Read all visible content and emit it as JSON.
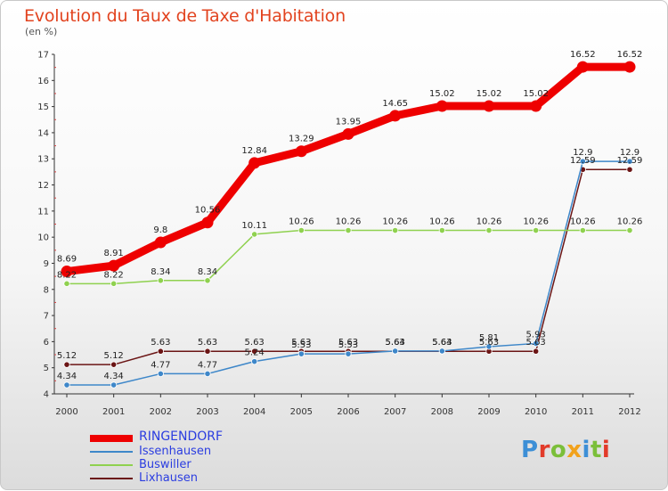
{
  "title": "Evolution du Taux de Taxe d'Habitation",
  "subtitle": "(en %)",
  "logo": {
    "text": "Proxiti",
    "letters": [
      "P",
      "r",
      "o",
      "x",
      "i",
      "t",
      "i"
    ],
    "colors": [
      "#3d8fd6",
      "#e23b2a",
      "#7bbf3a",
      "#f2a21c",
      "#3d8fd6",
      "#7bbf3a",
      "#e23b2a"
    ]
  },
  "chart_data": {
    "type": "line",
    "title": "Evolution du Taux de Taxe d'Habitation",
    "ylabel": "(en %)",
    "x": [
      "2000",
      "2001",
      "2002",
      "2003",
      "2004",
      "2005",
      "2006",
      "2007",
      "2008",
      "2009",
      "2010",
      "2011",
      "2012"
    ],
    "ylim": [
      4,
      17
    ],
    "yticks": [
      "4",
      "5",
      "6",
      "7",
      "8",
      "9",
      "10",
      "11",
      "12",
      "13",
      "14",
      "15",
      "16",
      "17"
    ],
    "grid": false,
    "legend": "bottom-left",
    "series": [
      {
        "name": "Lixhausen",
        "color": "#6b1515",
        "width": 1.5,
        "values": [
          5.12,
          5.12,
          5.63,
          5.63,
          5.63,
          5.63,
          5.63,
          5.63,
          5.63,
          5.63,
          5.63,
          12.59,
          12.59
        ],
        "labels": [
          "5.12",
          "5.12",
          "5.63",
          "5.63",
          "5.63",
          "5.63",
          "5.63",
          "5.63",
          "5.63",
          "5.63",
          "5.63",
          "12.59",
          "12.59"
        ]
      },
      {
        "name": "Issenhausen",
        "color": "#3e87c9",
        "width": 1.5,
        "values": [
          4.34,
          4.34,
          4.77,
          4.77,
          5.24,
          5.53,
          5.53,
          5.64,
          5.64,
          5.81,
          5.93,
          12.9,
          12.9
        ],
        "labels": [
          "4.34",
          "4.34",
          "4.77",
          "4.77",
          "5.24",
          "5.53",
          "5.53",
          "5.64",
          "5.64",
          "5.81",
          "5.93",
          "12.9",
          "12.9"
        ]
      },
      {
        "name": "Buswiller",
        "color": "#8fd14f",
        "width": 1.5,
        "values": [
          8.22,
          8.22,
          8.34,
          8.34,
          10.11,
          10.26,
          10.26,
          10.26,
          10.26,
          10.26,
          10.26,
          10.26,
          10.26
        ],
        "labels": [
          "8.22",
          "8.22",
          "8.34",
          "8.34",
          "10.11",
          "10.26",
          "10.26",
          "10.26",
          "10.26",
          "10.26",
          "10.26",
          "10.26",
          "10.26"
        ]
      },
      {
        "name": "RINGENDORF",
        "color": "#ee0000",
        "width": 9,
        "values": [
          8.69,
          8.91,
          9.8,
          10.56,
          12.84,
          13.29,
          13.95,
          14.65,
          15.02,
          15.02,
          15.02,
          16.52,
          16.52
        ],
        "labels": [
          "8.69",
          "8.91",
          "9.8",
          "10.56",
          "12.84",
          "13.29",
          "13.95",
          "14.65",
          "15.02",
          "15.02",
          "15.02",
          "16.52",
          "16.52"
        ]
      }
    ],
    "legend_order": [
      "RINGENDORF",
      "Issenhausen",
      "Buswiller",
      "Lixhausen"
    ]
  }
}
